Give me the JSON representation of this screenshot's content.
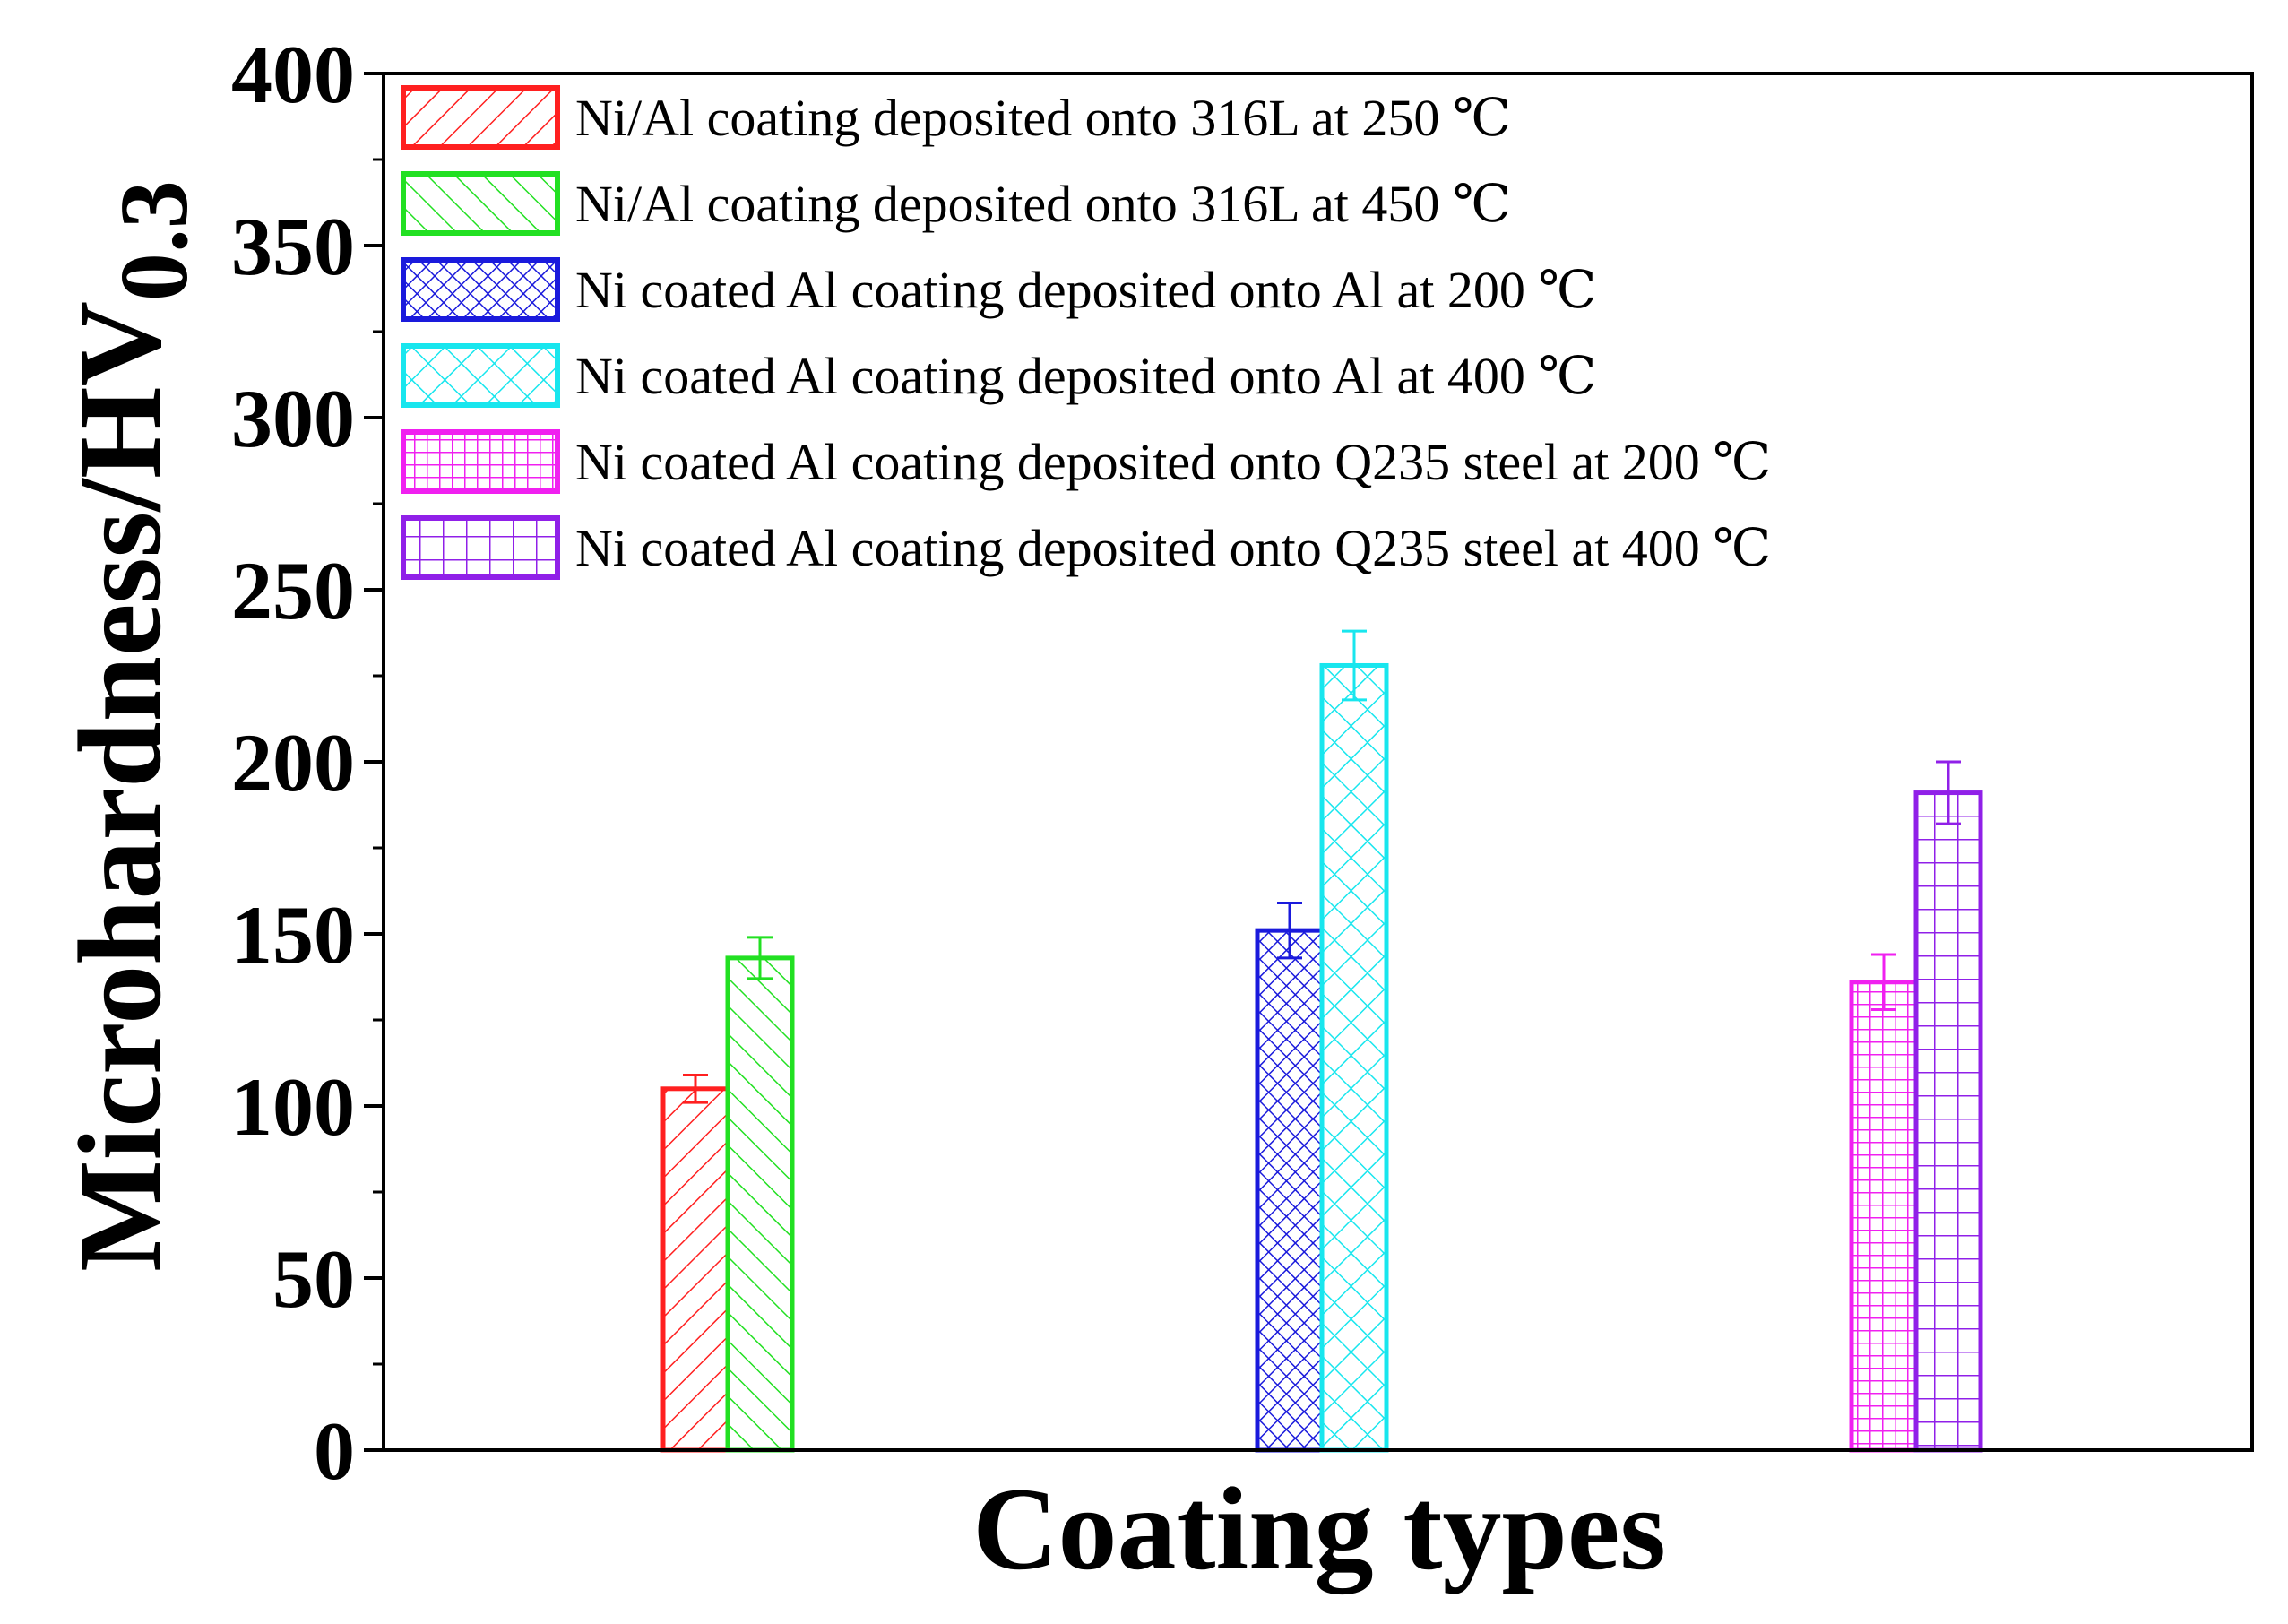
{
  "chart_data": {
    "type": "bar",
    "title": "",
    "xlabel": "Coating types",
    "ylabel": "Microhardness/HV",
    "ylabel_subscript": "0.3",
    "ylim": [
      0,
      400
    ],
    "yticks": [
      "0",
      "50",
      "100",
      "150",
      "200",
      "250",
      "300",
      "350",
      "400"
    ],
    "grid": false,
    "legend_position": "top-left",
    "series": [
      {
        "name": "Ni/Al coating deposited onto 316L at 250 ℃",
        "color": "#ff2020",
        "pattern": "diag-right",
        "group": 0,
        "value": 105,
        "error": 4
      },
      {
        "name": "Ni/Al coating deposited onto 316L at 450 ℃",
        "color": "#22e022",
        "pattern": "diag-left",
        "group": 0,
        "value": 143,
        "error": 6
      },
      {
        "name": "Ni coated Al coating deposited onto Al at 200 ℃",
        "color": "#1a1adc",
        "pattern": "crosshatch-dense",
        "group": 1,
        "value": 151,
        "error": 8
      },
      {
        "name": "Ni coated Al coating deposited onto Al at 400 ℃",
        "color": "#18e6ee",
        "pattern": "crosshatch",
        "group": 1,
        "value": 228,
        "error": 10
      },
      {
        "name": "Ni coated Al coating deposited onto Q235 steel at 200 ℃",
        "color": "#f020f0",
        "pattern": "grid-dense",
        "group": 2,
        "value": 136,
        "error": 8
      },
      {
        "name": "Ni coated Al coating deposited onto Q235 steel at 400 ℃",
        "color": "#9020e8",
        "pattern": "grid",
        "group": 2,
        "value": 191,
        "error": 9
      }
    ]
  }
}
